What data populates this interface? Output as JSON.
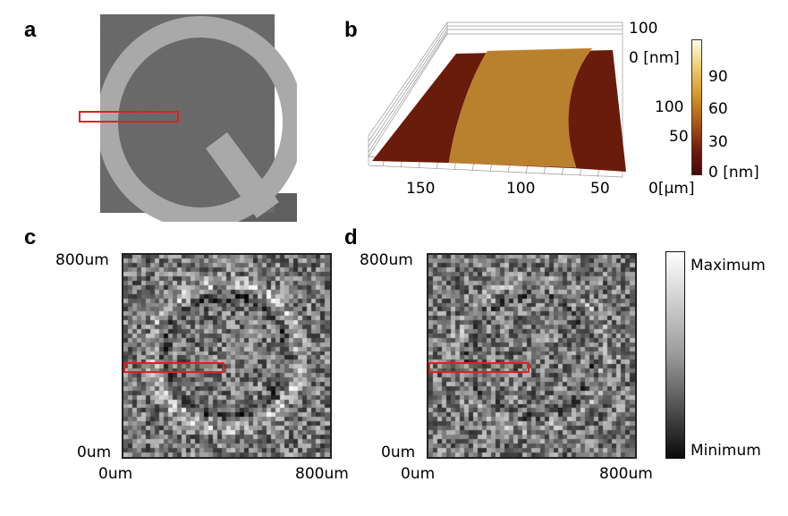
{
  "panels": {
    "a": {
      "label": "a"
    },
    "b": {
      "label": "b",
      "z_ticks": [
        "100",
        "0 [nm]"
      ],
      "y_ticks": [
        "100",
        "50"
      ],
      "x_ticks": [
        "150",
        "100",
        "50",
        "0[μm]"
      ],
      "colorbar_ticks": [
        "90",
        "60",
        "30",
        "0 [nm]"
      ]
    },
    "c": {
      "label": "c",
      "y_top": "800um",
      "y_bottom": "0um",
      "x_left": "0um",
      "x_right": "800um"
    },
    "d": {
      "label": "d",
      "y_top": "800um",
      "y_bottom": "0um",
      "x_left": "0um",
      "x_right": "800um"
    }
  },
  "colorbar": {
    "max_label": "Maximum",
    "min_label": "Minimum"
  },
  "colors": {
    "highlight": "#e02020",
    "afm_dark": "#5a0e08",
    "afm_mid": "#b8792a"
  },
  "icons": [
    "letter-q-sample"
  ]
}
